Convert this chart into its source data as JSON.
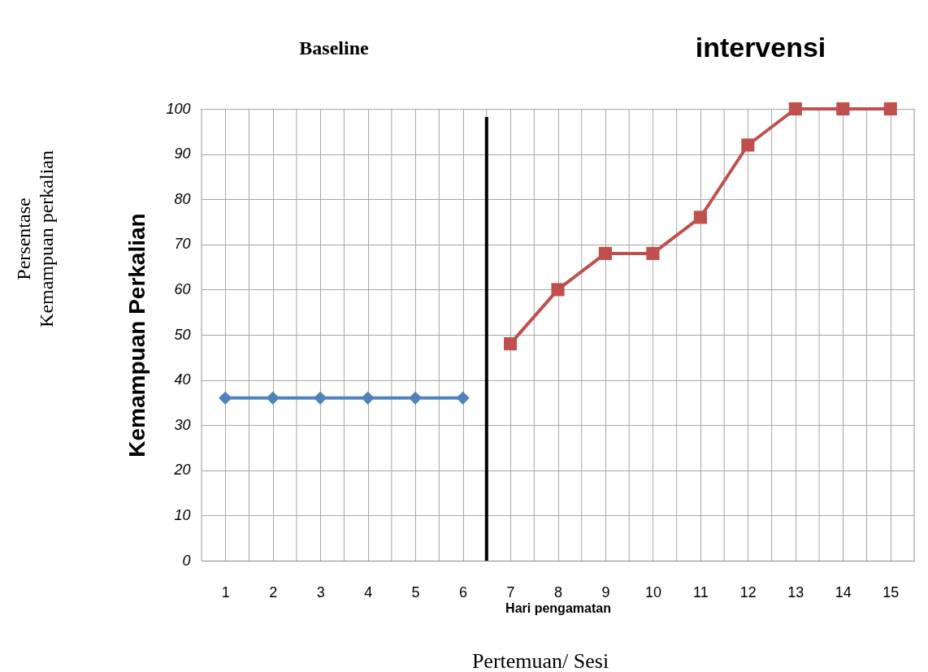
{
  "chart_data": {
    "type": "line",
    "xlabel": "Hari pengamatan",
    "ylabel": "Kemampuan Perkalian",
    "annotations": [
      "Baseline",
      "intervensi",
      "Persentase\nKemampuan perkalian",
      "Pertemuan/ Sesi"
    ],
    "series": [
      {
        "color": "#4f81bd",
        "marker": "diamond",
        "x": [
          1,
          2,
          3,
          4,
          5,
          6
        ],
        "values": [
          36,
          36,
          36,
          36,
          36,
          36
        ]
      },
      {
        "color": "#c0504d",
        "marker": "square",
        "x": [
          7,
          8,
          9,
          10,
          11,
          12,
          13,
          14,
          15
        ],
        "values": [
          48,
          60,
          68,
          68,
          76,
          92,
          100,
          100,
          100
        ]
      }
    ],
    "xlim": [
      0.5,
      15.5
    ],
    "xticks": [
      {
        "value": 0.5,
        "label": null
      },
      1,
      {
        "value": 1.5,
        "label": null
      },
      2,
      {
        "value": 2.5,
        "label": null
      },
      3,
      {
        "value": 3.5,
        "label": null
      },
      4,
      {
        "value": 4.5,
        "label": null
      },
      5,
      {
        "value": 5.5,
        "label": null
      },
      6,
      {
        "value": 6.5,
        "label": null
      },
      7,
      {
        "value": 7.5,
        "label": null
      },
      8,
      {
        "value": 8.5,
        "label": null
      },
      9,
      {
        "value": 9.5,
        "label": null
      },
      10,
      {
        "value": 10.5,
        "label": null
      },
      11,
      {
        "value": 11.5,
        "label": null
      },
      12,
      {
        "value": 12.5,
        "label": null
      },
      13,
      {
        "value": 13.5,
        "label": null
      },
      14,
      {
        "value": 14.5,
        "label": null
      },
      15,
      {
        "value": 15.5,
        "label": null
      }
    ],
    "ylim": [
      0,
      100
    ],
    "yticks": [
      0,
      10,
      20,
      30,
      40,
      50,
      60,
      70,
      80,
      90,
      100
    ],
    "ref_lines": [
      {
        "axis": "x",
        "value": 6.5,
        "color": "#000000"
      }
    ],
    "grid": true,
    "line_style": "solid"
  }
}
